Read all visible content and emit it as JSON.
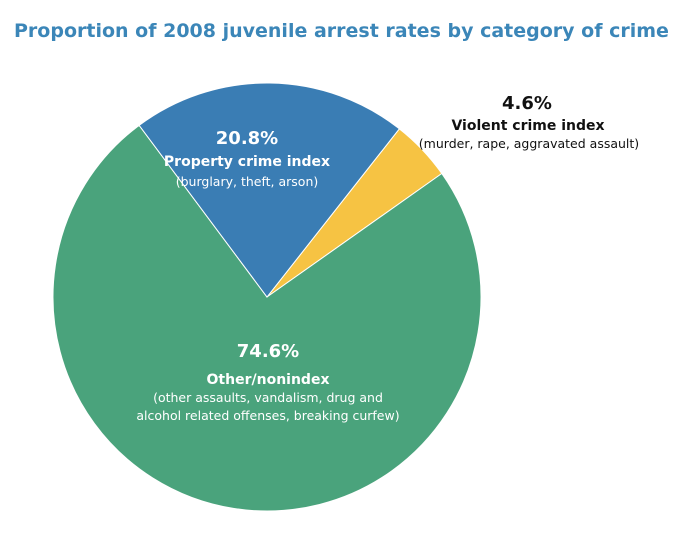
{
  "title": "Proportion of 2008 juvenile arrest rates by category of crime",
  "chart_data": {
    "type": "pie",
    "title": "Proportion of 2008 juvenile arrest rates by category of crime",
    "unit": "%",
    "slices": [
      {
        "label": "Violent crime index",
        "value": 4.6,
        "value_label": "4.6%",
        "description": "(murder, rape, aggravated assault)",
        "color": "#f6c343"
      },
      {
        "label": "Other/nonindex",
        "value": 74.6,
        "value_label": "74.6%",
        "description_lines": [
          "(other assaults, vandalism, drug and",
          "alcohol related offenses, breaking curfew)"
        ],
        "color": "#4aa37c"
      },
      {
        "label": "Property crime index",
        "value": 20.8,
        "value_label": "20.8%",
        "description": "(burglary, theft, arson)",
        "color": "#3a7db4"
      }
    ],
    "start_angle_deg": 38.2,
    "direction": "clockwise",
    "legend": "none"
  }
}
